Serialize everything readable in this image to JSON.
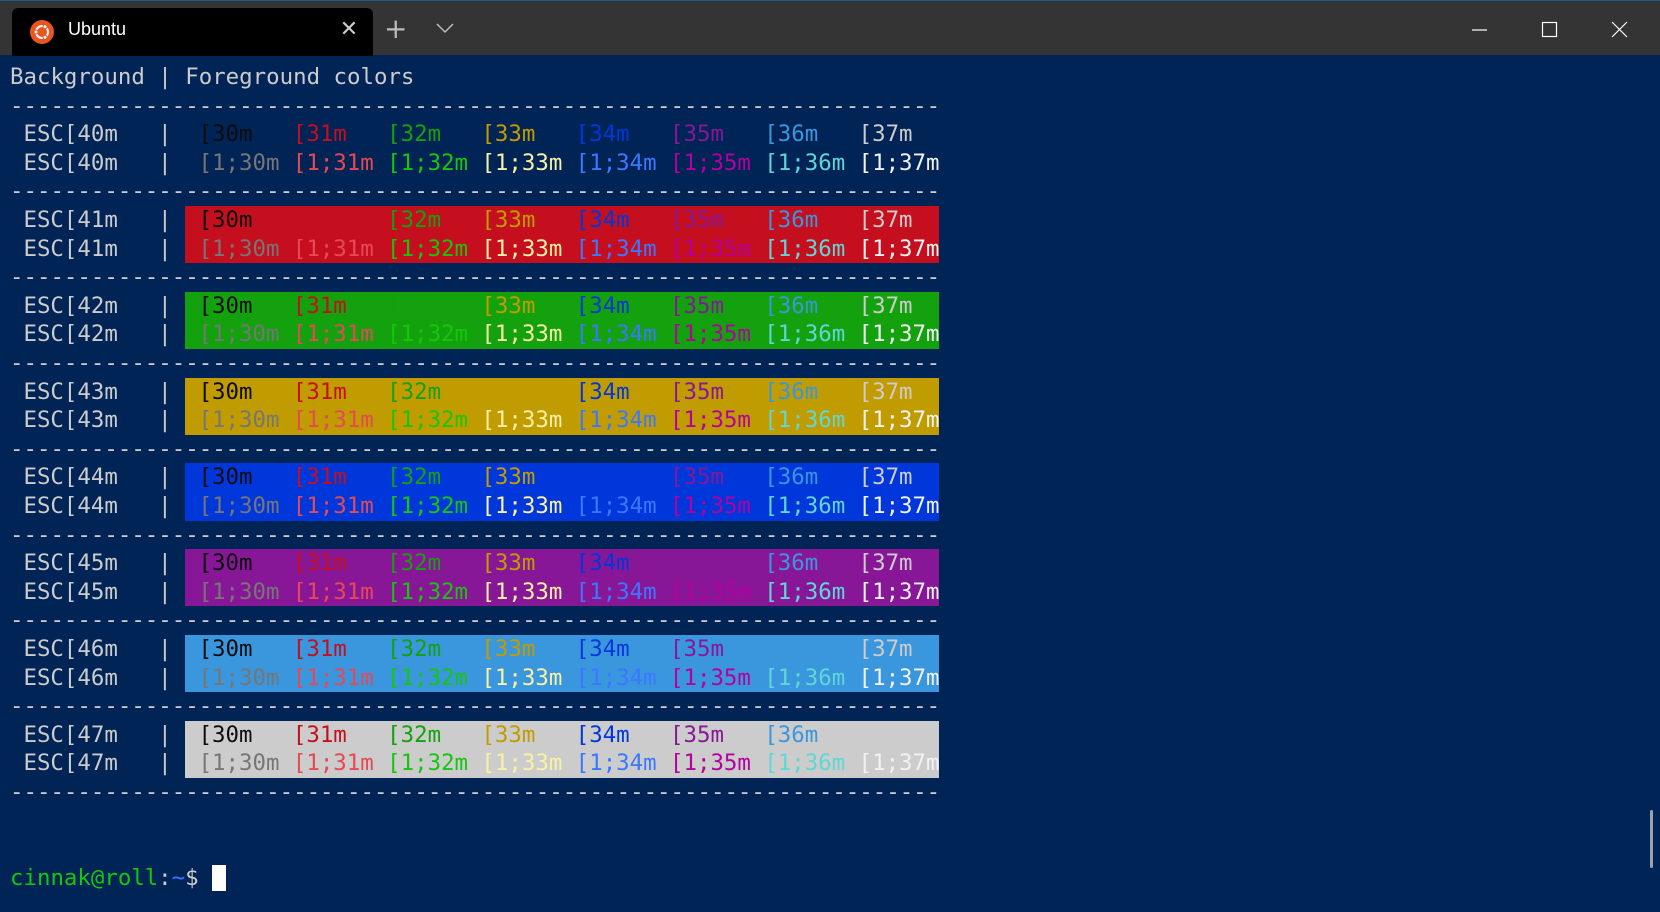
{
  "window": {
    "tab_title": "Ubuntu",
    "tab_icon": "ubuntu-logo-icon",
    "new_tab_label": "+",
    "colors": {
      "titlebar": "#343434",
      "tab": "#000000",
      "terminal_bg": "#012456"
    }
  },
  "terminal": {
    "header": "Background | Foreground colors",
    "separator": "---------------------------------------------------------------------",
    "divider": "|",
    "fg_normal": [
      "[30m",
      "[31m",
      "[32m",
      "[33m",
      "[34m",
      "[35m",
      "[36m",
      "[37m"
    ],
    "fg_bold": [
      "[1;30m",
      "[1;31m",
      "[1;32m",
      "[1;33m",
      "[1;34m",
      "[1;35m",
      "[1;36m",
      "[1;37m"
    ],
    "palette_normal": [
      "#0C0C0C",
      "#C50F1F",
      "#13A10E",
      "#C19C00",
      "#0037DA",
      "#881798",
      "#3A96DD",
      "#CCCCCC"
    ],
    "palette_bright": [
      "#767676",
      "#E74856",
      "#16C60C",
      "#F9F1A5",
      "#3B78FF",
      "#B4009E",
      "#61D6D6",
      "#F2F2F2"
    ],
    "background_rows": [
      {
        "code": "ESC[40m",
        "bg": null
      },
      {
        "code": "ESC[41m",
        "bg": "#C50F1F"
      },
      {
        "code": "ESC[42m",
        "bg": "#13A10E"
      },
      {
        "code": "ESC[43m",
        "bg": "#C19C00"
      },
      {
        "code": "ESC[44m",
        "bg": "#0037DA"
      },
      {
        "code": "ESC[45m",
        "bg": "#881798"
      },
      {
        "code": "ESC[46m",
        "bg": "#3A96DD"
      },
      {
        "code": "ESC[47m",
        "bg": "#CCCCCC"
      }
    ],
    "prompt": {
      "user_host": "cinnak@roll",
      "colon": ":",
      "path": "~",
      "symbol": "$"
    }
  }
}
